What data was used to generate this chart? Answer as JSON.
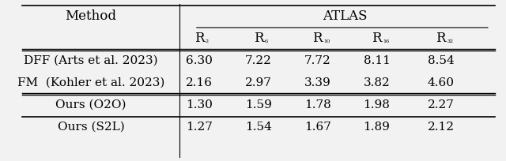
{
  "title": "ATLAS",
  "col_header": [
    "Method",
    "R₂",
    "R₆",
    "R₁₀",
    "R₁₆",
    "R₃₂"
  ],
  "rows": [
    [
      "DFF (Arts et al. 2023)",
      "6.30",
      "7.22",
      "7.72",
      "8.11",
      "8.54"
    ],
    [
      "FM  (Kohler et al. 2023)",
      "2.16",
      "2.97",
      "3.39",
      "3.82",
      "4.60"
    ],
    [
      "Ours (O2O)",
      "1.30",
      "1.59",
      "1.78",
      "1.98",
      "2.27"
    ],
    [
      "Ours (S2L)",
      "1.27",
      "1.54",
      "1.67",
      "1.89",
      "2.12"
    ]
  ],
  "group_separator_after": [
    1
  ],
  "background_color": "#f2f2f2",
  "figsize": [
    6.4,
    2.04
  ],
  "dpi": 100
}
